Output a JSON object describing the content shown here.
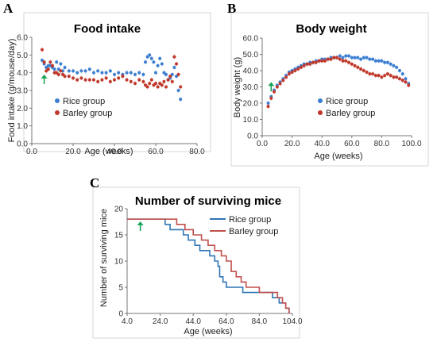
{
  "panels": [
    {
      "letter": "A",
      "chart_data": {
        "type": "scatter",
        "title": "Food intake",
        "xlabel": "Age (weeks)",
        "ylabel": "Food intake (g/mouse/day)",
        "xlim": [
          0,
          80
        ],
        "ylim": [
          0,
          6
        ],
        "x_ticks": [
          "0.0",
          "20.0",
          "40.0",
          "60.0",
          "80.0"
        ],
        "y_ticks": [
          "0.0",
          "1.0",
          "2.0",
          "3.0",
          "4.0",
          "5.0",
          "6.0"
        ],
        "grid": false,
        "legend_position": "lower-left",
        "arrow_at_x": 6,
        "series": [
          {
            "name": "Rice group",
            "color": "#3d7fd1",
            "x": [
              5,
              6,
              7,
              8,
              9,
              10,
              11,
              12,
              13,
              14,
              15,
              16,
              18,
              20,
              22,
              24,
              26,
              28,
              30,
              32,
              34,
              36,
              38,
              40,
              42,
              44,
              46,
              48,
              50,
              52,
              54,
              55,
              56,
              57,
              58,
              59,
              60,
              61,
              62,
              63,
              64,
              65,
              66,
              67,
              68,
              69,
              70,
              71,
              72
            ],
            "y": [
              4.7,
              4.5,
              4.3,
              4.4,
              4.4,
              4.3,
              4.2,
              4.6,
              4.2,
              4.5,
              4.1,
              4.3,
              4.1,
              4.1,
              4.0,
              4.1,
              4.1,
              4.2,
              4.0,
              4.1,
              4.0,
              4.0,
              4.1,
              3.9,
              4.0,
              3.9,
              4.0,
              4.0,
              3.9,
              4.0,
              3.9,
              4.6,
              4.9,
              5.0,
              4.8,
              4.6,
              4.0,
              4.4,
              4.8,
              4.5,
              4.0,
              3.9,
              3.6,
              3.7,
              3.9,
              4.3,
              3.8,
              3.0,
              2.5
            ]
          },
          {
            "name": "Barley group",
            "color": "#c0392b",
            "x": [
              5,
              6,
              7,
              8,
              9,
              10,
              11,
              12,
              13,
              14,
              15,
              16,
              18,
              20,
              22,
              24,
              26,
              28,
              30,
              32,
              34,
              36,
              38,
              40,
              42,
              44,
              46,
              48,
              50,
              52,
              54,
              55,
              56,
              57,
              58,
              59,
              60,
              61,
              62,
              63,
              64,
              65,
              66,
              67,
              68,
              69,
              70,
              71,
              72
            ],
            "y": [
              5.3,
              4.6,
              4.1,
              4.2,
              4.6,
              4.4,
              4.0,
              4.0,
              3.9,
              4.1,
              3.9,
              3.8,
              3.8,
              3.7,
              3.6,
              3.7,
              3.6,
              3.6,
              3.6,
              3.5,
              3.6,
              3.7,
              3.5,
              3.6,
              3.7,
              3.8,
              3.6,
              3.5,
              3.4,
              3.6,
              3.5,
              3.3,
              3.2,
              3.4,
              3.6,
              3.3,
              3.4,
              3.2,
              3.4,
              3.3,
              3.5,
              3.2,
              3.6,
              3.8,
              3.5,
              4.9,
              4.5,
              3.9,
              3.2
            ]
          }
        ]
      }
    },
    {
      "letter": "B",
      "chart_data": {
        "type": "scatter",
        "title": "Body weight",
        "xlabel": "Age (weeks)",
        "ylabel": "Body weight (g)",
        "xlim": [
          0,
          100
        ],
        "ylim": [
          0,
          60
        ],
        "x_ticks": [
          "0.0",
          "20.0",
          "40.0",
          "60.0",
          "80.0",
          "100.0"
        ],
        "y_ticks": [
          "0.0",
          "10.0",
          "20.0",
          "30.0",
          "40.0",
          "50.0",
          "60.0"
        ],
        "grid": false,
        "legend_position": "lower-right",
        "arrow_at_x": 6,
        "series": [
          {
            "name": "Rice group",
            "color": "#3d7fd1",
            "x": [
              4,
              6,
              8,
              10,
              12,
              14,
              16,
              18,
              20,
              22,
              24,
              26,
              28,
              30,
              32,
              34,
              36,
              38,
              40,
              42,
              44,
              46,
              48,
              50,
              52,
              54,
              56,
              58,
              60,
              62,
              64,
              66,
              68,
              70,
              72,
              74,
              76,
              78,
              80,
              82,
              84,
              86,
              88,
              90,
              92,
              94,
              96,
              98
            ],
            "y": [
              20,
              24,
              28,
              31,
              33,
              35,
              37,
              39,
              40,
              41,
              42,
              43,
              44,
              44,
              45,
              45,
              46,
              46,
              47,
              47,
              47,
              48,
              48,
              48,
              49,
              48,
              49,
              49,
              48,
              48,
              48,
              47,
              48,
              48,
              47,
              47,
              46,
              46,
              46,
              45,
              45,
              44,
              43,
              42,
              40,
              38,
              35,
              32
            ]
          },
          {
            "name": "Barley group",
            "color": "#c0392b",
            "x": [
              4,
              6,
              8,
              10,
              12,
              14,
              16,
              18,
              20,
              22,
              24,
              26,
              28,
              30,
              32,
              34,
              36,
              38,
              40,
              42,
              44,
              46,
              48,
              50,
              52,
              54,
              56,
              58,
              60,
              62,
              64,
              66,
              68,
              70,
              72,
              74,
              76,
              78,
              80,
              82,
              84,
              86,
              88,
              90,
              92,
              94,
              96,
              98
            ],
            "y": [
              18,
              23,
              27,
              30,
              32,
              34,
              36,
              38,
              39,
              40,
              41,
              42,
              43,
              44,
              44,
              45,
              45,
              46,
              46,
              46,
              47,
              47,
              48,
              48,
              47,
              46,
              46,
              45,
              44,
              43,
              42,
              41,
              40,
              39,
              38,
              38,
              37,
              37,
              36,
              37,
              38,
              37,
              36,
              36,
              35,
              34,
              33,
              31
            ]
          }
        ]
      }
    },
    {
      "letter": "C",
      "chart_data": {
        "type": "line",
        "step": true,
        "title": "Number of surviving mice",
        "xlabel": "Age (weeks)",
        "ylabel": "Number of surviving mice",
        "xlim": [
          4,
          104
        ],
        "ylim": [
          0,
          20
        ],
        "x_ticks": [
          "4.0",
          "24.0",
          "44.0",
          "64.0",
          "84.0",
          "104.0"
        ],
        "y_ticks": [
          "0",
          "5",
          "10",
          "15",
          "20"
        ],
        "grid": false,
        "legend_position": "top-right",
        "arrow_at_x": 12,
        "series": [
          {
            "name": "Rice group",
            "color": "#2e75b6",
            "x": [
              4,
              24,
              27,
              30,
              35,
              38,
              41,
              45,
              48,
              51,
              54,
              57,
              59,
              60,
              62,
              64,
              68,
              74,
              78,
              88,
              92,
              96,
              100,
              101,
              102
            ],
            "y": [
              18,
              18,
              17,
              16,
              16,
              15,
              14,
              13,
              12,
              12,
              11,
              10,
              9,
              7,
              6,
              5,
              5,
              4,
              4,
              4,
              3,
              2,
              1,
              1,
              0
            ]
          },
          {
            "name": "Barley group",
            "color": "#c0504d",
            "x": [
              4,
              28,
              34,
              39,
              44,
              49,
              53,
              57,
              61,
              64,
              67,
              70,
              73,
              76,
              80,
              84,
              88,
              92,
              95,
              98,
              100,
              102
            ],
            "y": [
              18,
              18,
              17,
              16,
              15,
              14,
              13,
              12,
              11,
              10,
              8,
              7,
              6,
              5,
              5,
              4,
              4,
              4,
              3,
              2,
              1,
              0
            ]
          }
        ]
      }
    }
  ]
}
